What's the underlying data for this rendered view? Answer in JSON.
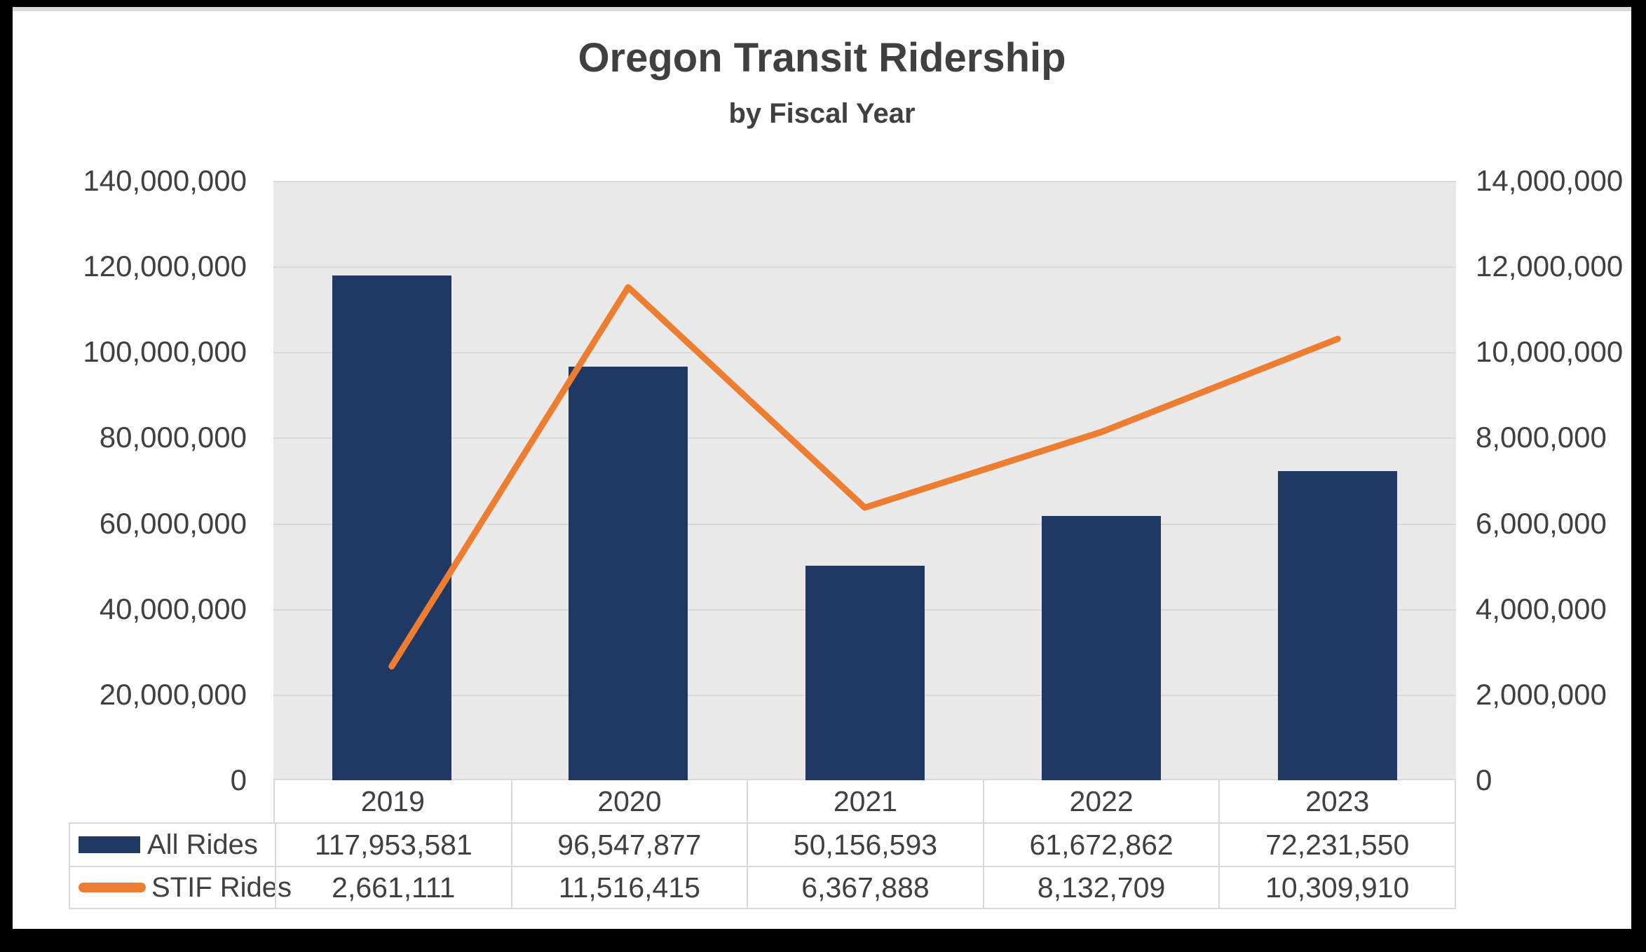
{
  "chart_data": {
    "type": "combo-bar-line",
    "title": "Oregon Transit Ridership",
    "subtitle": "by Fiscal Year",
    "categories": [
      "2019",
      "2020",
      "2021",
      "2022",
      "2023"
    ],
    "series": [
      {
        "name": "All Rides",
        "type": "bar",
        "axis": "left",
        "values": [
          117953581,
          96547877,
          50156593,
          61672862,
          72231550
        ]
      },
      {
        "name": "STIF Rides",
        "type": "line",
        "axis": "right",
        "values": [
          2661111,
          11516415,
          6367888,
          8132709,
          10309910
        ]
      }
    ],
    "left_axis": {
      "min": 0,
      "max": 140000000,
      "step": 20000000,
      "tick_labels": [
        "140,000,000",
        "120,000,000",
        "100,000,000",
        "80,000,000",
        "60,000,000",
        "40,000,000",
        "20,000,000",
        "0"
      ]
    },
    "right_axis": {
      "min": 0,
      "max": 14000000,
      "step": 2000000,
      "tick_labels": [
        "14,000,000",
        "12,000,000",
        "10,000,000",
        "8,000,000",
        "6,000,000",
        "4,000,000",
        "2,000,000",
        "0"
      ]
    },
    "grid": true,
    "legend_position": "table-left",
    "data_table": {
      "rows": [
        {
          "label": "All Rides",
          "swatch": "bar",
          "cells": [
            "117,953,581",
            "96,547,877",
            "50,156,593",
            "61,672,862",
            "72,231,550"
          ]
        },
        {
          "label": "STIF Rides",
          "swatch": "line",
          "cells": [
            "2,661,111",
            "11,516,415",
            "6,367,888",
            "8,132,709",
            "10,309,910"
          ]
        }
      ]
    },
    "colors": {
      "bar": "#1F3864",
      "line": "#ED7D31",
      "plot_bg": "#E9E9E9",
      "grid": "#D9D9D9",
      "border": "#D9D9D9",
      "text": "#404040",
      "card_bg": "#FFFFFF",
      "frame_bg": "#000000"
    }
  }
}
